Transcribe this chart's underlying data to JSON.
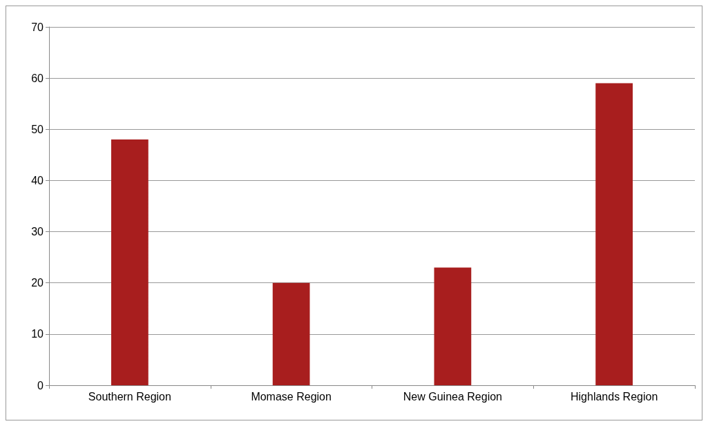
{
  "chart_data": {
    "type": "bar",
    "categories": [
      "Southern Region",
      "Momase Region",
      "New Guinea Region",
      "Highlands Region"
    ],
    "values": [
      48,
      20,
      23,
      59
    ],
    "color": "#a81e1e",
    "ylim": [
      0,
      70
    ],
    "yticks": [
      0,
      10,
      20,
      30,
      40,
      50,
      60,
      70
    ],
    "grid": "y"
  }
}
